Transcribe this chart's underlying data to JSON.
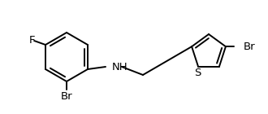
{
  "bg_color": "#ffffff",
  "line_color": "#000000",
  "atom_color": "#000000",
  "label_F": "F",
  "label_Br1": "Br",
  "label_NH": "NH",
  "label_S": "S",
  "label_Br2": "Br",
  "figsize": [
    3.3,
    1.4
  ],
  "dpi": 100,
  "font_size": 9.5,
  "line_width": 1.4
}
